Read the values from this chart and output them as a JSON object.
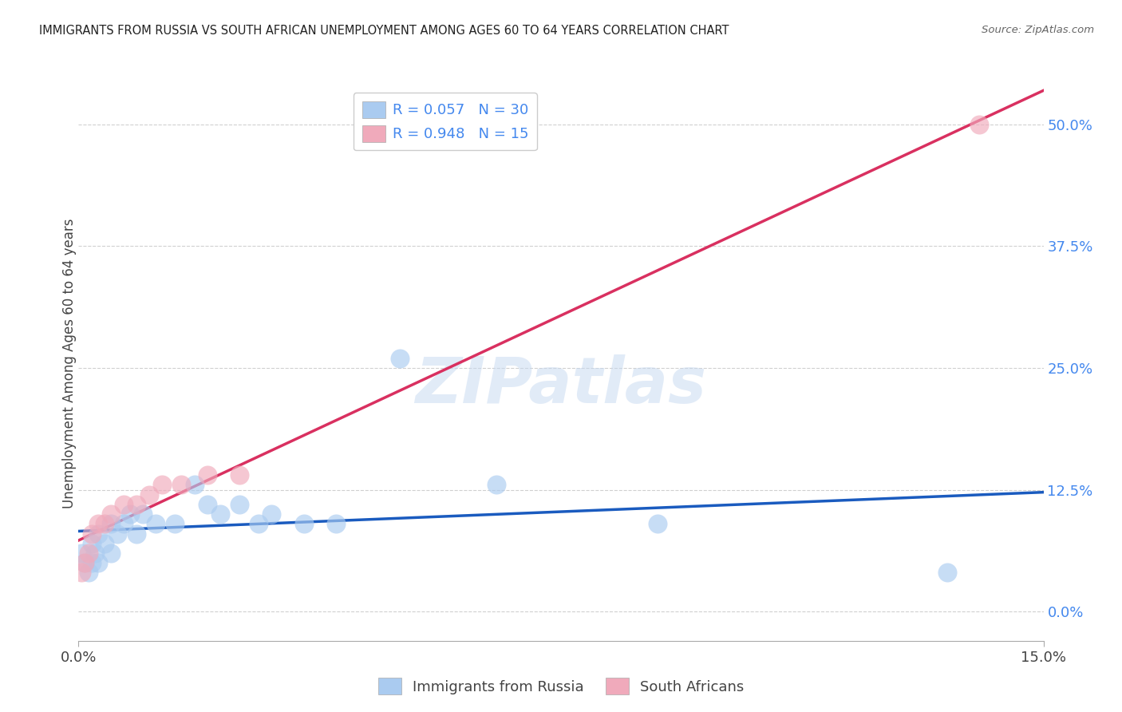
{
  "title": "IMMIGRANTS FROM RUSSIA VS SOUTH AFRICAN UNEMPLOYMENT AMONG AGES 60 TO 64 YEARS CORRELATION CHART",
  "source": "Source: ZipAtlas.com",
  "ylabel": "Unemployment Among Ages 60 to 64 years",
  "xlim": [
    0.0,
    0.15
  ],
  "ylim": [
    -0.03,
    0.54
  ],
  "yticks": [
    0.0,
    0.125,
    0.25,
    0.375,
    0.5
  ],
  "ytick_labels": [
    "0.0%",
    "12.5%",
    "25.0%",
    "37.5%",
    "50.0%"
  ],
  "xtick_vals": [
    0.0,
    0.15
  ],
  "xtick_labels": [
    "0.0%",
    "15.0%"
  ],
  "scatter_color1": "#aacbf0",
  "scatter_color2": "#f0aabb",
  "line_color1": "#1a5bbf",
  "line_color2": "#d93060",
  "tick_color": "#4488ee",
  "grid_color": "#d0d0d0",
  "background_color": "#ffffff",
  "title_color": "#222222",
  "watermark": "ZIPatlas",
  "legend1_r": "R = 0.057",
  "legend1_n": "N = 30",
  "legend2_r": "R = 0.948",
  "legend2_n": "N = 15",
  "legend_bottom1": "Immigrants from Russia",
  "legend_bottom2": "South Africans",
  "russia_x": [
    0.0005,
    0.001,
    0.0015,
    0.002,
    0.002,
    0.0025,
    0.003,
    0.003,
    0.004,
    0.005,
    0.005,
    0.006,
    0.007,
    0.008,
    0.009,
    0.01,
    0.012,
    0.015,
    0.018,
    0.02,
    0.022,
    0.025,
    0.028,
    0.03,
    0.035,
    0.04,
    0.05,
    0.065,
    0.09,
    0.135
  ],
  "russia_y": [
    0.06,
    0.05,
    0.04,
    0.07,
    0.05,
    0.06,
    0.08,
    0.05,
    0.07,
    0.09,
    0.06,
    0.08,
    0.09,
    0.1,
    0.08,
    0.1,
    0.09,
    0.09,
    0.13,
    0.11,
    0.1,
    0.11,
    0.09,
    0.1,
    0.09,
    0.09,
    0.26,
    0.13,
    0.09,
    0.04
  ],
  "sa_x": [
    0.0005,
    0.001,
    0.0015,
    0.002,
    0.003,
    0.004,
    0.005,
    0.007,
    0.009,
    0.011,
    0.013,
    0.016,
    0.02,
    0.025,
    0.14
  ],
  "sa_y": [
    0.04,
    0.05,
    0.06,
    0.08,
    0.09,
    0.09,
    0.1,
    0.11,
    0.11,
    0.12,
    0.13,
    0.13,
    0.14,
    0.14,
    0.5
  ]
}
